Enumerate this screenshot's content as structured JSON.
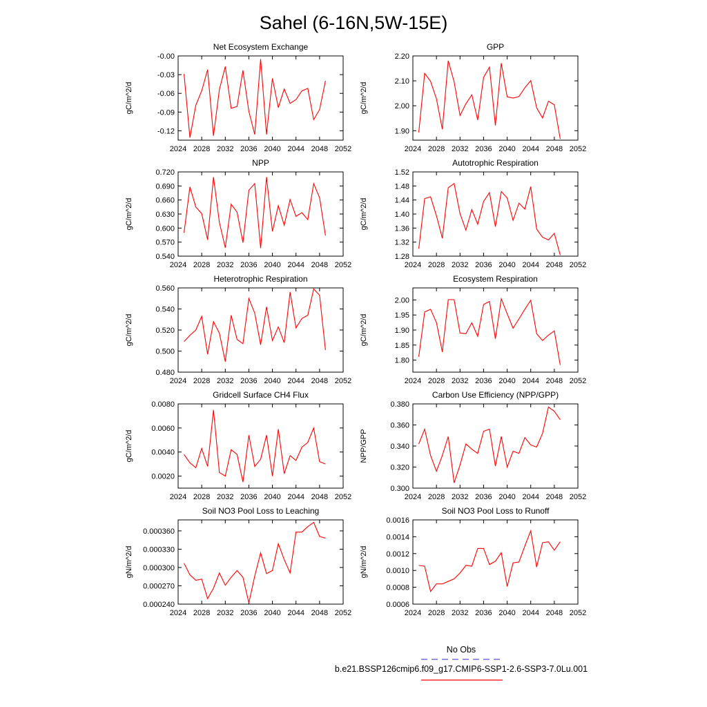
{
  "title": "Sahel (6-16N,5W-15E)",
  "legend": {
    "obs_label": "No Obs",
    "obs_color": "#5555cc",
    "model_label": "b.e21.BSSP126cmip6.f09_g17.CMIP6-SSP1-2.6-SSP3-7.0Lu.001",
    "model_color": "#ff0000"
  },
  "line_color": "#ff0000",
  "chart_data": [
    {
      "type": "line",
      "title": "Net Ecosystem Exchange",
      "ylabel": "gC/m^2/d",
      "xlim": [
        2024,
        2052
      ],
      "ylim": [
        -0.135,
        0.0
      ],
      "xticks": [
        2024,
        2028,
        2032,
        2036,
        2040,
        2044,
        2048,
        2052
      ],
      "yticks": [
        -0.12,
        -0.09,
        -0.06,
        -0.03,
        0.0
      ],
      "ytick_labels": [
        "-0.12",
        "-0.09",
        "-0.06",
        "-0.03",
        "-0.00"
      ],
      "series": [
        {
          "x": [
            2025,
            2026,
            2027,
            2028,
            2029,
            2030,
            2031,
            2032,
            2033,
            2034,
            2035,
            2036,
            2037,
            2038,
            2039,
            2040,
            2041,
            2042,
            2043,
            2044,
            2045,
            2046,
            2047,
            2048,
            2049
          ],
          "values": [
            -0.029,
            -0.131,
            -0.079,
            -0.056,
            -0.022,
            -0.128,
            -0.054,
            -0.017,
            -0.084,
            -0.081,
            -0.023,
            -0.089,
            -0.126,
            -0.005,
            -0.126,
            -0.036,
            -0.083,
            -0.053,
            -0.076,
            -0.07,
            -0.056,
            -0.052,
            -0.102,
            -0.086,
            -0.04
          ]
        }
      ]
    },
    {
      "type": "line",
      "title": "GPP",
      "ylabel": "gC/m^2/d",
      "xlim": [
        2024,
        2052
      ],
      "ylim": [
        1.862,
        2.2
      ],
      "xticks": [
        2024,
        2028,
        2032,
        2036,
        2040,
        2044,
        2048,
        2052
      ],
      "yticks": [
        1.9,
        2.0,
        2.1,
        2.2
      ],
      "ytick_labels": [
        "1.90",
        "2.00",
        "2.10",
        "2.20"
      ],
      "series": [
        {
          "x": [
            2025,
            2026,
            2027,
            2028,
            2029,
            2030,
            2031,
            2032,
            2033,
            2034,
            2035,
            2036,
            2037,
            2038,
            2039,
            2040,
            2041,
            2042,
            2043,
            2044,
            2045,
            2046,
            2047,
            2048,
            2049
          ],
          "values": [
            1.893,
            2.13,
            2.098,
            2.028,
            1.906,
            2.181,
            2.096,
            1.961,
            2.008,
            2.044,
            1.943,
            2.114,
            2.155,
            1.921,
            2.171,
            2.036,
            2.031,
            2.037,
            2.072,
            2.101,
            1.992,
            1.951,
            2.018,
            2.004,
            1.867
          ]
        }
      ]
    },
    {
      "type": "line",
      "title": "NPP",
      "ylabel": "gC/m^2/d",
      "xlim": [
        2024,
        2052
      ],
      "ylim": [
        0.54,
        0.72
      ],
      "xticks": [
        2024,
        2028,
        2032,
        2036,
        2040,
        2044,
        2048,
        2052
      ],
      "yticks": [
        0.54,
        0.57,
        0.6,
        0.63,
        0.66,
        0.69,
        0.72
      ],
      "ytick_labels": [
        "0.540",
        "0.570",
        "0.600",
        "0.630",
        "0.660",
        "0.690",
        "0.720"
      ],
      "series": [
        {
          "x": [
            2025,
            2026,
            2027,
            2028,
            2029,
            2030,
            2031,
            2032,
            2033,
            2034,
            2035,
            2036,
            2037,
            2038,
            2039,
            2040,
            2041,
            2042,
            2043,
            2044,
            2045,
            2046,
            2047,
            2048,
            2049
          ],
          "values": [
            0.59,
            0.688,
            0.645,
            0.631,
            0.575,
            0.709,
            0.612,
            0.558,
            0.651,
            0.634,
            0.569,
            0.681,
            0.695,
            0.557,
            0.709,
            0.593,
            0.648,
            0.606,
            0.661,
            0.625,
            0.633,
            0.618,
            0.695,
            0.665,
            0.584
          ]
        }
      ]
    },
    {
      "type": "line",
      "title": "Autotrophic Respiration",
      "ylabel": "gC/m^2/d",
      "xlim": [
        2024,
        2052
      ],
      "ylim": [
        1.28,
        1.52
      ],
      "xticks": [
        2024,
        2028,
        2032,
        2036,
        2040,
        2044,
        2048,
        2052
      ],
      "yticks": [
        1.28,
        1.32,
        1.36,
        1.4,
        1.44,
        1.48,
        1.52
      ],
      "ytick_labels": [
        "1.28",
        "1.32",
        "1.36",
        "1.40",
        "1.44",
        "1.48",
        "1.52"
      ],
      "series": [
        {
          "x": [
            2025,
            2026,
            2027,
            2028,
            2029,
            2030,
            2031,
            2032,
            2033,
            2034,
            2035,
            2036,
            2037,
            2038,
            2039,
            2040,
            2041,
            2042,
            2043,
            2044,
            2045,
            2046,
            2047,
            2048,
            2049
          ],
          "values": [
            1.301,
            1.444,
            1.449,
            1.395,
            1.331,
            1.475,
            1.487,
            1.401,
            1.354,
            1.413,
            1.371,
            1.436,
            1.461,
            1.364,
            1.464,
            1.446,
            1.382,
            1.431,
            1.414,
            1.478,
            1.357,
            1.334,
            1.326,
            1.345,
            1.283
          ]
        }
      ]
    },
    {
      "type": "line",
      "title": "Heterotrophic Respiration",
      "ylabel": "gC/m^2/d",
      "xlim": [
        2024,
        2052
      ],
      "ylim": [
        0.48,
        0.56
      ],
      "xticks": [
        2024,
        2028,
        2032,
        2036,
        2040,
        2044,
        2048,
        2052
      ],
      "yticks": [
        0.48,
        0.5,
        0.52,
        0.54,
        0.56
      ],
      "ytick_labels": [
        "0.480",
        "0.500",
        "0.520",
        "0.540",
        "0.560"
      ],
      "series": [
        {
          "x": [
            2025,
            2026,
            2027,
            2028,
            2029,
            2030,
            2031,
            2032,
            2033,
            2034,
            2035,
            2036,
            2037,
            2038,
            2039,
            2040,
            2041,
            2042,
            2043,
            2044,
            2045,
            2046,
            2047,
            2048,
            2049
          ],
          "values": [
            0.509,
            0.515,
            0.52,
            0.533,
            0.497,
            0.528,
            0.517,
            0.49,
            0.534,
            0.511,
            0.507,
            0.55,
            0.536,
            0.506,
            0.542,
            0.51,
            0.523,
            0.508,
            0.556,
            0.522,
            0.531,
            0.534,
            0.559,
            0.553,
            0.501
          ]
        }
      ]
    },
    {
      "type": "line",
      "title": "Ecosystem Respiration",
      "ylabel": "gC/m^2/d",
      "xlim": [
        2024,
        2052
      ],
      "ylim": [
        1.76,
        2.04
      ],
      "xticks": [
        2024,
        2028,
        2032,
        2036,
        2040,
        2044,
        2048,
        2052
      ],
      "yticks": [
        1.8,
        1.85,
        1.9,
        1.95,
        2.0
      ],
      "ytick_labels": [
        "1.80",
        "1.85",
        "1.90",
        "1.95",
        "2.00"
      ],
      "series": [
        {
          "x": [
            2025,
            2026,
            2027,
            2028,
            2029,
            2030,
            2031,
            2032,
            2033,
            2034,
            2035,
            2036,
            2037,
            2038,
            2039,
            2040,
            2041,
            2042,
            2043,
            2044,
            2045,
            2046,
            2047,
            2048,
            2049
          ],
          "values": [
            1.811,
            1.96,
            1.969,
            1.925,
            1.827,
            2.001,
            2.001,
            1.89,
            1.888,
            1.924,
            1.879,
            1.985,
            1.995,
            1.871,
            2.004,
            1.954,
            1.906,
            1.937,
            1.969,
            1.999,
            1.888,
            1.865,
            1.883,
            1.897,
            1.784
          ]
        }
      ]
    },
    {
      "type": "line",
      "title": "Gridcell Surface CH4 Flux",
      "ylabel": "gC/m^2/d",
      "xlim": [
        2024,
        2052
      ],
      "ylim": [
        0.001,
        0.008
      ],
      "xticks": [
        2024,
        2028,
        2032,
        2036,
        2040,
        2044,
        2048,
        2052
      ],
      "yticks": [
        0.002,
        0.004,
        0.006,
        0.008
      ],
      "ytick_labels": [
        "0.0020",
        "0.0040",
        "0.0060",
        "0.0080"
      ],
      "series": [
        {
          "x": [
            2025,
            2026,
            2027,
            2028,
            2029,
            2030,
            2031,
            2032,
            2033,
            2034,
            2035,
            2036,
            2037,
            2038,
            2039,
            2040,
            2041,
            2042,
            2043,
            2044,
            2045,
            2046,
            2047,
            2048,
            2049
          ],
          "values": [
            0.0038,
            0.0031,
            0.0027,
            0.0043,
            0.0028,
            0.0075,
            0.0023,
            0.002,
            0.0042,
            0.0038,
            0.0015,
            0.0054,
            0.0028,
            0.0034,
            0.0054,
            0.002,
            0.0059,
            0.0022,
            0.0037,
            0.0033,
            0.0044,
            0.0048,
            0.006,
            0.0032,
            0.003
          ]
        }
      ]
    },
    {
      "type": "line",
      "title": "Carbon Use Efficiency (NPP/GPP)",
      "ylabel": "NPP/GPP",
      "xlim": [
        2024,
        2052
      ],
      "ylim": [
        0.3,
        0.38
      ],
      "xticks": [
        2024,
        2028,
        2032,
        2036,
        2040,
        2044,
        2048,
        2052
      ],
      "yticks": [
        0.3,
        0.32,
        0.34,
        0.36,
        0.38
      ],
      "ytick_labels": [
        "0.300",
        "0.320",
        "0.340",
        "0.360",
        "0.380"
      ],
      "series": [
        {
          "x": [
            2025,
            2026,
            2027,
            2028,
            2029,
            2030,
            2031,
            2032,
            2033,
            2034,
            2035,
            2036,
            2037,
            2038,
            2039,
            2040,
            2041,
            2042,
            2043,
            2044,
            2045,
            2046,
            2047,
            2048,
            2049
          ],
          "values": [
            0.342,
            0.356,
            0.331,
            0.316,
            0.331,
            0.349,
            0.305,
            0.322,
            0.342,
            0.337,
            0.333,
            0.354,
            0.356,
            0.321,
            0.349,
            0.32,
            0.335,
            0.333,
            0.348,
            0.341,
            0.339,
            0.352,
            0.377,
            0.373,
            0.365
          ]
        }
      ]
    },
    {
      "type": "line",
      "title": "Soil NO3 Pool Loss to Leaching",
      "ylabel": "gN/m^2/d",
      "xlim": [
        2024,
        2052
      ],
      "ylim": [
        0.00024,
        0.000378
      ],
      "xticks": [
        2024,
        2028,
        2032,
        2036,
        2040,
        2044,
        2048,
        2052
      ],
      "yticks": [
        0.00024,
        0.00027,
        0.0003,
        0.00033,
        0.00036
      ],
      "ytick_labels": [
        "0.000240",
        "0.000270",
        "0.000300",
        "0.000330",
        "0.000360"
      ],
      "series": [
        {
          "x": [
            2025,
            2026,
            2027,
            2028,
            2029,
            2030,
            2031,
            2032,
            2033,
            2034,
            2035,
            2036,
            2037,
            2038,
            2039,
            2040,
            2041,
            2042,
            2043,
            2044,
            2045,
            2046,
            2047,
            2048,
            2049
          ],
          "values": [
            0.000307,
            0.000288,
            0.000279,
            0.000281,
            0.000249,
            0.000266,
            0.000291,
            0.000271,
            0.000284,
            0.000295,
            0.000284,
            0.000242,
            0.000286,
            0.000324,
            0.00029,
            0.000295,
            0.000339,
            0.000313,
            0.000291,
            0.000358,
            0.000358,
            0.000367,
            0.000374,
            0.000351,
            0.000348
          ]
        }
      ]
    },
    {
      "type": "line",
      "title": "Soil NO3 Pool Loss to Runoff",
      "ylabel": "gN/m^2/d",
      "xlim": [
        2024,
        2052
      ],
      "ylim": [
        0.0006,
        0.0016
      ],
      "xticks": [
        2024,
        2028,
        2032,
        2036,
        2040,
        2044,
        2048,
        2052
      ],
      "yticks": [
        0.0006,
        0.0008,
        0.001,
        0.0012,
        0.0014,
        0.0016
      ],
      "ytick_labels": [
        "0.0006",
        "0.0008",
        "0.0010",
        "0.0012",
        "0.0014",
        "0.0016"
      ],
      "series": [
        {
          "x": [
            2025,
            2026,
            2027,
            2028,
            2029,
            2030,
            2031,
            2032,
            2033,
            2034,
            2035,
            2036,
            2037,
            2038,
            2039,
            2040,
            2041,
            2042,
            2043,
            2044,
            2045,
            2046,
            2047,
            2048,
            2049
          ],
          "values": [
            0.00106,
            0.00105,
            0.00075,
            0.00084,
            0.00084,
            0.00087,
            0.0009,
            0.00097,
            0.00106,
            0.00105,
            0.00126,
            0.00126,
            0.00107,
            0.00111,
            0.00121,
            0.00081,
            0.00109,
            0.0011,
            0.00129,
            0.00147,
            0.00104,
            0.00133,
            0.00134,
            0.00124,
            0.00134
          ]
        }
      ]
    }
  ]
}
